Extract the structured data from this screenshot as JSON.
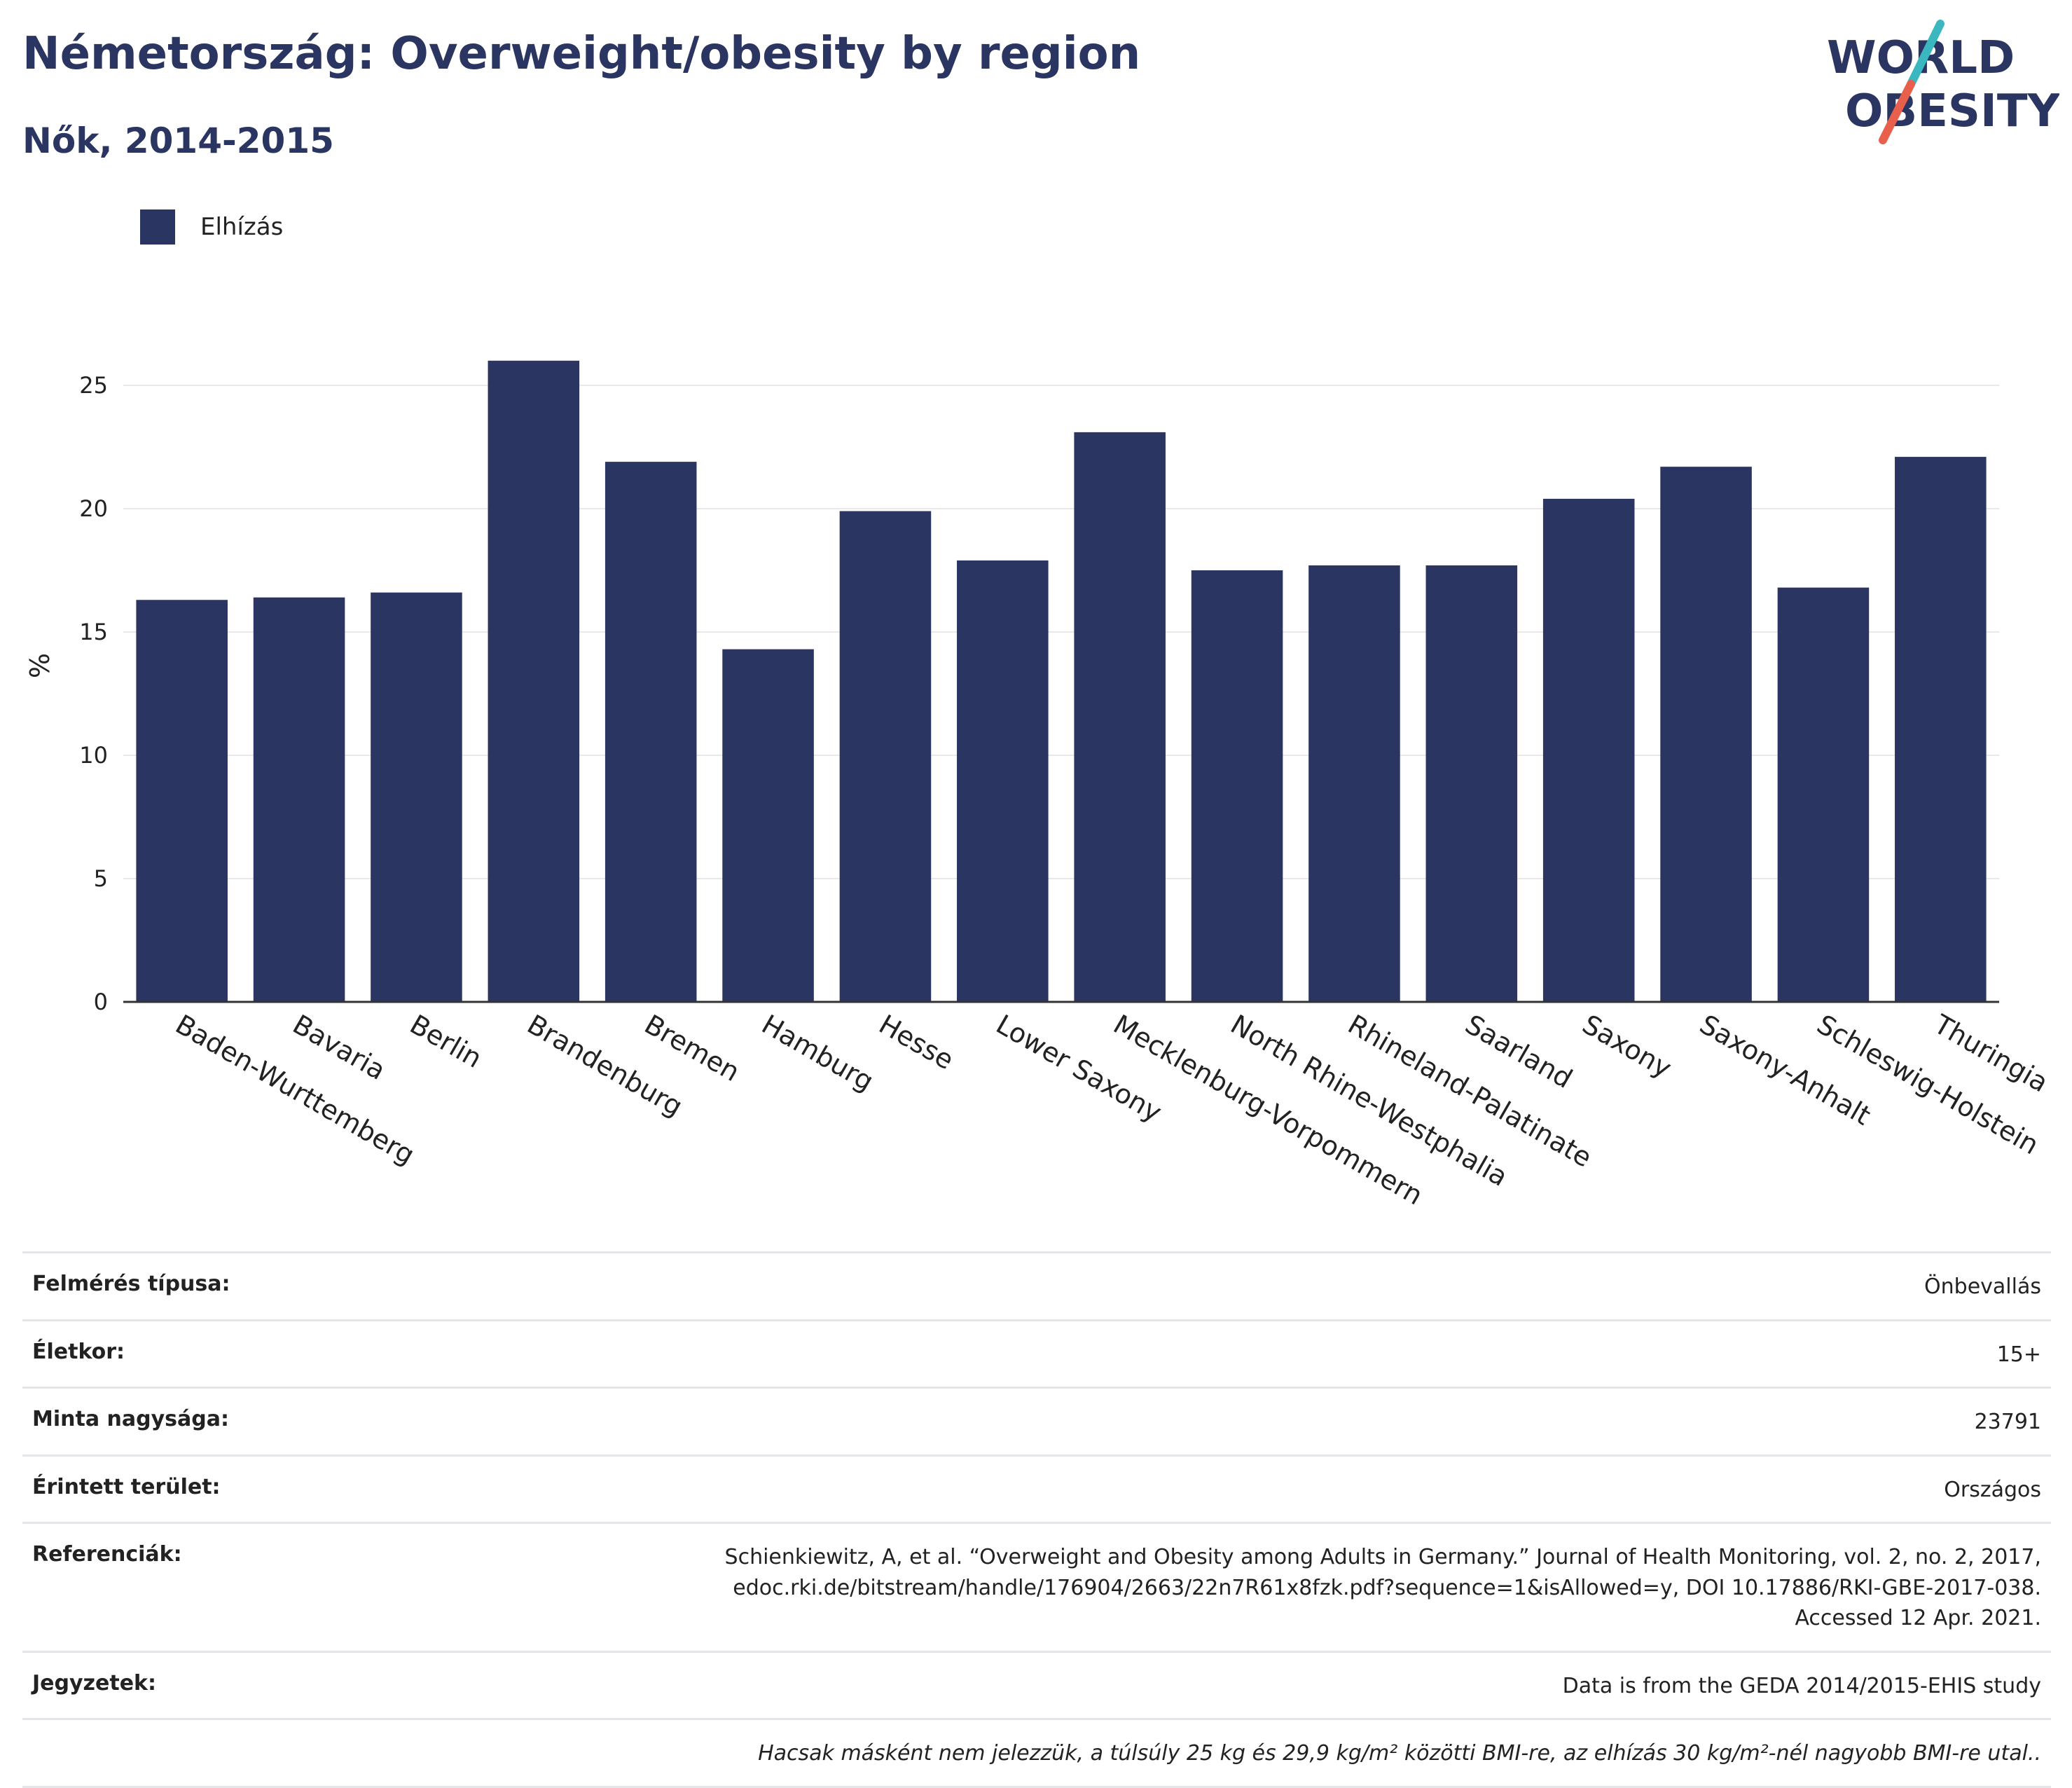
{
  "header": {
    "title": "Németország: Overweight/obesity by region",
    "subtitle": "Nők, 2014-2015"
  },
  "logo": {
    "line1": "WORLD",
    "line2": "OBESITY",
    "colors": {
      "text": "#2a3561",
      "slash_top": "#3bb7c0",
      "slash_bottom": "#e8604c"
    }
  },
  "colors": {
    "bar": "#2a3561",
    "grid": "#e9e9ec",
    "axis": "#333333"
  },
  "legend": {
    "items": [
      {
        "label": "Elhízás",
        "color": "#2a3561"
      }
    ],
    "position": "top-left"
  },
  "chart_data": {
    "type": "bar",
    "title": "Németország: Overweight/obesity by region",
    "subtitle": "Nők, 2014-2015",
    "xlabel": "",
    "ylabel": "%",
    "ylim": [
      0,
      27
    ],
    "yticks": [
      0,
      5,
      10,
      15,
      20,
      25
    ],
    "grid": true,
    "legend_position": "top-left",
    "categories": [
      "Baden-Wurttemberg",
      "Bavaria",
      "Berlin",
      "Brandenburg",
      "Bremen",
      "Hamburg",
      "Hesse",
      "Lower Saxony",
      "Mecklenburg-Vorpommern",
      "North Rhine-Westphalia",
      "Rhineland-Palatinate",
      "Saarland",
      "Saxony",
      "Saxony-Anhalt",
      "Schleswig-Holstein",
      "Thuringia"
    ],
    "series": [
      {
        "name": "Elhízás",
        "color": "#2a3561",
        "values": [
          16.3,
          16.4,
          16.6,
          26.0,
          21.9,
          14.3,
          19.9,
          17.9,
          23.1,
          17.5,
          17.7,
          17.7,
          20.4,
          21.7,
          16.8,
          22.1
        ]
      }
    ]
  },
  "info": {
    "rows": [
      {
        "label": "Felmérés típusa:",
        "value": "Önbevallás"
      },
      {
        "label": "Életkor:",
        "value": "15+"
      },
      {
        "label": "Minta nagysága:",
        "value": "23791"
      },
      {
        "label": "Érintett terület:",
        "value": "Országos"
      },
      {
        "label": "Referenciák:",
        "value": "Schienkiewitz, A, et al. “Overweight and Obesity among Adults in Germany.” Journal of Health Monitoring, vol. 2, no. 2, 2017, edoc.rki.de/bitstream/handle/176904/2663/22n7R61x8fzk.pdf?sequence=1&isAllowed=y, DOI 10.17886/RKI-GBE-2017-038. Accessed 12 Apr. 2021."
      },
      {
        "label": "Jegyzetek:",
        "value": "Data is from the GEDA 2014/2015-EHIS study"
      }
    ],
    "footnote": "Hacsak másként nem jelezzük, a túlsúly 25 kg és 29,9 kg/m² közötti BMI-re, az elhízás 30 kg/m²-nél nagyobb BMI-re utal.."
  }
}
